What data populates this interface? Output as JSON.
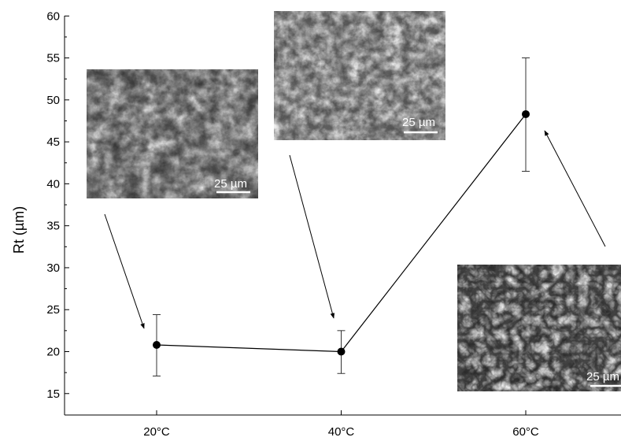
{
  "chart_data": {
    "type": "scatter",
    "categories": [
      "20°C",
      "40°C",
      "60°C"
    ],
    "x": [
      20,
      40,
      60
    ],
    "ylabel": "Rt (µm)",
    "ylim": [
      12,
      60
    ],
    "yticks": [
      15,
      20,
      25,
      30,
      35,
      40,
      45,
      50,
      55,
      60
    ],
    "series": [
      {
        "values": [
          20.8,
          20.0,
          48.3
        ],
        "error_low": [
          17.1,
          17.4,
          41.5
        ],
        "error_high": [
          24.4,
          22.5,
          55.0
        ],
        "connected": true
      }
    ],
    "grid": false,
    "insets": [
      {
        "scale_label": "25 µm",
        "points_to": "20°C",
        "texture": "coarse-cracked"
      },
      {
        "scale_label": "25 µm",
        "points_to": "40°C",
        "texture": "fine-granular"
      },
      {
        "scale_label": "25 µm",
        "points_to": "60°C",
        "texture": "crystalline"
      }
    ]
  }
}
